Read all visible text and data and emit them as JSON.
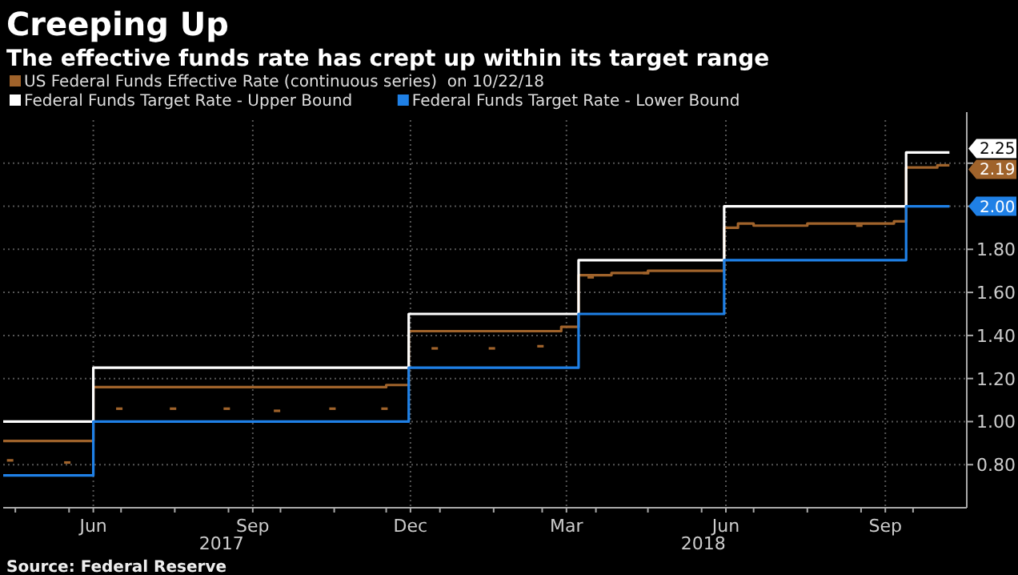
{
  "chart_data": {
    "type": "step",
    "title": "Creeping Up",
    "subtitle": "The effective funds rate has crept up within its target range",
    "xlim": [
      "2017-04-24",
      "2018-11-01"
    ],
    "xticks": [
      {
        "value": "2017-05-01",
        "label": null
      },
      {
        "value": "2017-06-01",
        "label": null
      },
      {
        "value": "2017-06-15",
        "label": "Jun"
      },
      {
        "value": "2017-07-01",
        "label": null
      },
      {
        "value": "2017-08-01",
        "label": null
      },
      {
        "value": "2017-09-01",
        "label": null
      },
      {
        "value": "2017-09-15",
        "label": "Sep"
      },
      {
        "value": "2017-10-01",
        "label": null
      },
      {
        "value": "2017-11-01",
        "label": null
      },
      {
        "value": "2017-12-01",
        "label": null
      },
      {
        "value": "2017-12-15",
        "label": "Dec"
      },
      {
        "value": "2018-01-01",
        "label": null
      },
      {
        "value": "2018-02-01",
        "label": null
      },
      {
        "value": "2018-03-01",
        "label": null
      },
      {
        "value": "2018-03-15",
        "label": "Mar"
      },
      {
        "value": "2018-04-01",
        "label": null
      },
      {
        "value": "2018-05-01",
        "label": null
      },
      {
        "value": "2018-06-01",
        "label": null
      },
      {
        "value": "2018-06-15",
        "label": "Jun"
      },
      {
        "value": "2018-07-01",
        "label": null
      },
      {
        "value": "2018-08-01",
        "label": null
      },
      {
        "value": "2018-09-01",
        "label": null
      },
      {
        "value": "2018-09-15",
        "label": "Sep"
      },
      {
        "value": "2018-10-01",
        "label": null
      }
    ],
    "ylim": [
      0.6,
      2.4
    ],
    "yticks": [
      {
        "value": 0.8,
        "label": "0.80"
      },
      {
        "value": 1.0,
        "label": "1.00"
      },
      {
        "value": 1.2,
        "label": "1.20"
      },
      {
        "value": 1.4,
        "label": "1.40"
      },
      {
        "value": 1.6,
        "label": "1.60"
      },
      {
        "value": 1.8,
        "label": "1.80"
      },
      {
        "value": 2.0,
        "label": null
      },
      {
        "value": 2.2,
        "label": null
      }
    ],
    "grid": true,
    "legend": "top left",
    "series": [
      {
        "name": "US Federal Funds Effective Rate (continuous series)  on 10/22/18",
        "color": "#a0632b",
        "x": [
          "2017-04-24",
          "2017-06-15",
          "2017-12-01",
          "2017-12-14",
          "2018-03-12",
          "2018-03-22",
          "2018-04-10",
          "2018-05-01",
          "2018-06-14",
          "2018-06-22",
          "2018-07-01",
          "2018-08-01",
          "2018-09-20",
          "2018-09-27",
          "2018-10-15",
          "2018-10-22"
        ],
        "values": [
          0.91,
          1.16,
          1.17,
          1.42,
          1.44,
          1.68,
          1.69,
          1.7,
          1.9,
          1.92,
          1.91,
          1.92,
          1.93,
          2.18,
          2.19,
          2.19
        ],
        "value_labels": [
          null,
          null,
          null,
          null,
          null,
          null,
          null,
          null,
          null,
          null,
          null,
          null,
          null,
          null,
          null,
          "2.19"
        ]
      },
      {
        "name": "Federal Funds Target Rate - Upper Bound",
        "color": "#ffffff",
        "x": [
          "2017-04-24",
          "2017-06-15",
          "2017-12-14",
          "2018-03-22",
          "2018-06-14",
          "2018-09-27",
          "2018-10-22"
        ],
        "values": [
          1.0,
          1.25,
          1.5,
          1.75,
          2.0,
          2.25,
          2.25
        ],
        "value_labels": [
          null,
          null,
          null,
          null,
          null,
          null,
          "2.25"
        ]
      },
      {
        "name": "Federal Funds Target Rate - Lower Bound",
        "color": "#1f80e6",
        "x": [
          "2017-04-24",
          "2017-06-15",
          "2017-12-14",
          "2018-03-22",
          "2018-06-14",
          "2018-09-27",
          "2018-10-22"
        ],
        "values": [
          0.75,
          1.0,
          1.25,
          1.5,
          1.75,
          2.0,
          2.0
        ],
        "value_labels": [
          null,
          null,
          null,
          null,
          null,
          null,
          "2.00"
        ]
      },
      {
        "type": "scatter",
        "color": "#a0632b",
        "x": [
          "2017-04-28",
          "2017-05-31",
          "2017-06-30",
          "2017-07-31",
          "2017-08-31",
          "2017-09-29",
          "2017-10-31",
          "2017-11-30",
          "2017-12-29",
          "2018-01-31",
          "2018-02-28",
          "2018-03-29",
          "2018-04-30",
          "2018-08-31"
        ],
        "values": [
          0.82,
          0.81,
          1.06,
          1.06,
          1.06,
          1.05,
          1.06,
          1.06,
          1.34,
          1.34,
          1.35,
          1.67,
          1.69,
          1.91
        ]
      }
    ],
    "annotations": [
      "2017",
      "2018",
      "Source: Federal Reserve"
    ]
  }
}
